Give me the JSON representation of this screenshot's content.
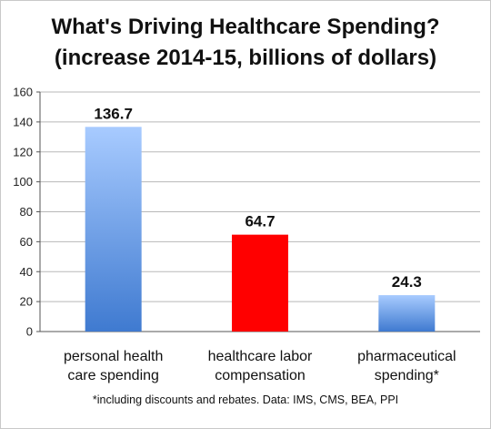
{
  "title": [
    "What's Driving Healthcare Spending?",
    "(increase 2014-15, billions of dollars)"
  ],
  "footnote": "*including discounts and rebates. Data: IMS, CMS, BEA, PPI",
  "chart_data": {
    "type": "bar",
    "title": "What's Driving Healthcare Spending? (increase 2014-15, billions of dollars)",
    "categories": [
      [
        "personal health",
        "care spending"
      ],
      [
        "healthcare labor",
        "compensation"
      ],
      [
        "pharmaceutical",
        "spending*"
      ]
    ],
    "values": [
      136.7,
      64.7,
      24.3
    ],
    "data_labels": [
      "136.7",
      "64.7",
      "24.3"
    ],
    "bar_colors": [
      "#5b92e0",
      "#ff0000",
      "#5b92e0"
    ],
    "ylim": [
      0,
      160
    ],
    "yticks": [
      0,
      20,
      40,
      60,
      80,
      100,
      120,
      140,
      160
    ],
    "grid": true,
    "xlabel": "",
    "ylabel": ""
  }
}
